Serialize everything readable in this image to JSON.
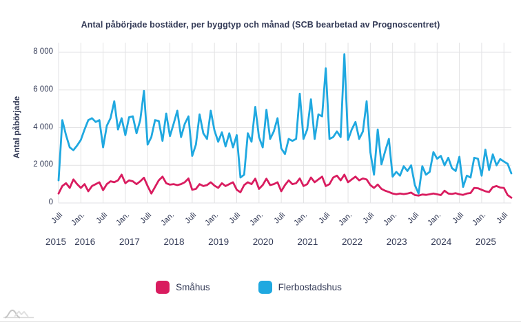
{
  "title": "Antal påbörjade bostäder, per byggtyp och månad (SCB bearbetad av Prognoscentret)",
  "colors": {
    "smahus": "#d91c5f",
    "flerbostadshus": "#1fa8e0",
    "text": "#333a56",
    "gridline": "#e2e2e4"
  },
  "y_axis": {
    "label": "Antal påbörjade",
    "ticks": [
      {
        "value": 8000,
        "label": "8 000"
      },
      {
        "value": 6000,
        "label": "6 000"
      },
      {
        "value": 4000,
        "label": "4 000"
      },
      {
        "value": 2000,
        "label": "2 000"
      },
      {
        "value": 0,
        "label": "0"
      }
    ]
  },
  "x_axis": {
    "ticks": [
      {
        "m": 0,
        "label": "Juli"
      },
      {
        "m": 6,
        "label": "Jan."
      },
      {
        "m": 12,
        "label": "Juli"
      },
      {
        "m": 18,
        "label": "Jan."
      },
      {
        "m": 24,
        "label": "Juli"
      },
      {
        "m": 30,
        "label": "Jan."
      },
      {
        "m": 36,
        "label": "Juli"
      },
      {
        "m": 42,
        "label": "Jan."
      },
      {
        "m": 48,
        "label": "Juli"
      },
      {
        "m": 54,
        "label": "Jan."
      },
      {
        "m": 60,
        "label": "Juli"
      },
      {
        "m": 66,
        "label": "Jan."
      },
      {
        "m": 72,
        "label": "Juli"
      },
      {
        "m": 78,
        "label": "Jan."
      },
      {
        "m": 84,
        "label": "Juli"
      },
      {
        "m": 90,
        "label": "Jan."
      },
      {
        "m": 96,
        "label": "Juli"
      },
      {
        "m": 102,
        "label": "Jan."
      },
      {
        "m": 108,
        "label": "Juli"
      },
      {
        "m": 114,
        "label": "Jan."
      },
      {
        "m": 120,
        "label": "Juli"
      }
    ],
    "years": [
      {
        "m": 0,
        "label": "2015"
      },
      {
        "m": 6,
        "label": "2016"
      },
      {
        "m": 18,
        "label": "2017"
      },
      {
        "m": 30,
        "label": "2018"
      },
      {
        "m": 42,
        "label": "2019"
      },
      {
        "m": 54,
        "label": "2020"
      },
      {
        "m": 66,
        "label": "2021"
      },
      {
        "m": 78,
        "label": "2022"
      },
      {
        "m": 90,
        "label": "2023"
      },
      {
        "m": 102,
        "label": "2024"
      },
      {
        "m": 114,
        "label": "2025"
      }
    ]
  },
  "legend": [
    {
      "label": "Småhus",
      "color": "#d91c5f"
    },
    {
      "label": "Flerbostadshus",
      "color": "#1fa8e0"
    }
  ],
  "chart_data": {
    "type": "line",
    "title": "Antal påbörjade bostäder, per byggtyp och månad (SCB bearbetad av Prognoscentret)",
    "xlabel": "",
    "ylabel": "Antal påbörjade",
    "ylim": [
      0,
      8000
    ],
    "grid": true,
    "legend_position": "bottom",
    "x": [
      "2015-07",
      "2015-08",
      "2015-09",
      "2015-10",
      "2015-11",
      "2015-12",
      "2016-01",
      "2016-02",
      "2016-03",
      "2016-04",
      "2016-05",
      "2016-06",
      "2016-07",
      "2016-08",
      "2016-09",
      "2016-10",
      "2016-11",
      "2016-12",
      "2017-01",
      "2017-02",
      "2017-03",
      "2017-04",
      "2017-05",
      "2017-06",
      "2017-07",
      "2017-08",
      "2017-09",
      "2017-10",
      "2017-11",
      "2017-12",
      "2018-01",
      "2018-02",
      "2018-03",
      "2018-04",
      "2018-05",
      "2018-06",
      "2018-07",
      "2018-08",
      "2018-09",
      "2018-10",
      "2018-11",
      "2018-12",
      "2019-01",
      "2019-02",
      "2019-03",
      "2019-04",
      "2019-05",
      "2019-06",
      "2019-07",
      "2019-08",
      "2019-09",
      "2019-10",
      "2019-11",
      "2019-12",
      "2020-01",
      "2020-02",
      "2020-03",
      "2020-04",
      "2020-05",
      "2020-06",
      "2020-07",
      "2020-08",
      "2020-09",
      "2020-10",
      "2020-11",
      "2020-12",
      "2021-01",
      "2021-02",
      "2021-03",
      "2021-04",
      "2021-05",
      "2021-06",
      "2021-07",
      "2021-08",
      "2021-09",
      "2021-10",
      "2021-11",
      "2021-12",
      "2022-01",
      "2022-02",
      "2022-03",
      "2022-04",
      "2022-05",
      "2022-06",
      "2022-07",
      "2022-08",
      "2022-09",
      "2022-10",
      "2022-11",
      "2022-12",
      "2023-01",
      "2023-02",
      "2023-03",
      "2023-04",
      "2023-05",
      "2023-06",
      "2023-07",
      "2023-08",
      "2023-09",
      "2023-10",
      "2023-11",
      "2023-12",
      "2024-01",
      "2024-02",
      "2024-03",
      "2024-04",
      "2024-05",
      "2024-06",
      "2024-07",
      "2024-08",
      "2024-09",
      "2024-10",
      "2024-11",
      "2024-12",
      "2025-01",
      "2025-02",
      "2025-03",
      "2025-04",
      "2025-05",
      "2025-06",
      "2025-07",
      "2025-08",
      "2025-09"
    ],
    "series": [
      {
        "name": "Småhus",
        "color": "#d91c5f",
        "values": [
          500,
          900,
          1050,
          800,
          1250,
          1000,
          800,
          1000,
          620,
          900,
          1000,
          1100,
          680,
          1000,
          1150,
          1100,
          1200,
          1500,
          1050,
          1200,
          1150,
          1000,
          1150,
          1340,
          900,
          500,
          850,
          1200,
          1400,
          1050,
          970,
          1000,
          950,
          1000,
          1100,
          1300,
          700,
          750,
          1000,
          900,
          950,
          1100,
          920,
          800,
          1050,
          900,
          1000,
          1100,
          700,
          570,
          950,
          1100,
          1000,
          1290,
          750,
          950,
          1290,
          950,
          1000,
          1100,
          620,
          950,
          1200,
          1000,
          1050,
          1300,
          900,
          1000,
          1350,
          1100,
          1250,
          1400,
          900,
          1000,
          1350,
          1450,
          1200,
          1500,
          1100,
          1250,
          1400,
          1200,
          1300,
          1250,
          950,
          800,
          980,
          750,
          650,
          580,
          500,
          460,
          500,
          470,
          500,
          550,
          420,
          390,
          450,
          430,
          460,
          500,
          460,
          420,
          650,
          500,
          480,
          520,
          460,
          430,
          500,
          530,
          800,
          780,
          700,
          620,
          580,
          840,
          900,
          820,
          800,
          420,
          280
        ]
      },
      {
        "name": "Flerbostadshus",
        "color": "#1fa8e0",
        "values": [
          1200,
          4400,
          3600,
          2950,
          2800,
          3050,
          3350,
          3900,
          4400,
          4500,
          4300,
          4400,
          2950,
          4100,
          4500,
          5400,
          3900,
          4500,
          3600,
          4550,
          4600,
          3700,
          4400,
          5950,
          3100,
          3500,
          4400,
          4350,
          3300,
          4750,
          3550,
          4200,
          4900,
          3500,
          4200,
          4600,
          2500,
          3100,
          4700,
          3700,
          3400,
          4900,
          3850,
          3250,
          3750,
          3000,
          3700,
          2950,
          3600,
          1350,
          1500,
          3700,
          3250,
          5100,
          3500,
          2950,
          4950,
          3400,
          3800,
          4500,
          2900,
          2600,
          3400,
          3300,
          3400,
          5800,
          3400,
          3900,
          5500,
          3400,
          4700,
          4600,
          7150,
          3400,
          3500,
          3800,
          3500,
          7900,
          3350,
          3900,
          4300,
          3400,
          3800,
          5400,
          2700,
          1500,
          3900,
          2050,
          2750,
          3400,
          1400,
          1650,
          1450,
          1950,
          1700,
          2000,
          950,
          500,
          1950,
          1500,
          1650,
          2700,
          2350,
          2500,
          2000,
          2400,
          1850,
          1700,
          2450,
          850,
          1450,
          1350,
          2400,
          2350,
          1450,
          2830,
          1750,
          2580,
          2000,
          2330,
          2200,
          2080,
          1570
        ]
      }
    ]
  }
}
